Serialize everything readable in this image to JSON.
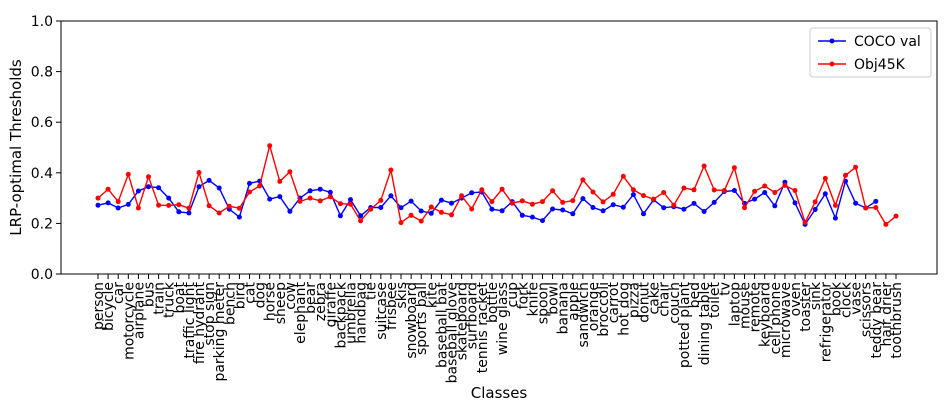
{
  "chart_data": {
    "type": "line",
    "title": "",
    "xlabel": "Classes",
    "ylabel": "LRP-optimal Thresholds",
    "ylim": [
      0.0,
      1.0
    ],
    "yticks": [
      "0.0",
      "0.2",
      "0.4",
      "0.6",
      "0.8",
      "1.0"
    ],
    "grid": false,
    "legend_position": "top-right",
    "categories": [
      "person",
      "bicycle",
      "car",
      "motorcycle",
      "airplane",
      "bus",
      "train",
      "truck",
      "boat",
      "traffic light",
      "fire hydrant",
      "stop sign",
      "parking meter",
      "bench",
      "bird",
      "cat",
      "dog",
      "horse",
      "sheep",
      "cow",
      "elephant",
      "bear",
      "zebra",
      "giraffe",
      "backpack",
      "umbrella",
      "handbag",
      "tie",
      "suitcase",
      "frisbee",
      "skis",
      "snowboard",
      "sports ball",
      "kite",
      "baseball bat",
      "baseball glove",
      "skateboard",
      "surfboard",
      "tennis racket",
      "bottle",
      "wine glass",
      "cup",
      "fork",
      "knife",
      "spoon",
      "bowl",
      "banana",
      "apple",
      "sandwich",
      "orange",
      "broccoli",
      "carrot",
      "hot dog",
      "pizza",
      "donut",
      "cake",
      "chair",
      "couch",
      "potted plant",
      "bed",
      "dining table",
      "toilet",
      "tv",
      "laptop",
      "mouse",
      "remote",
      "keyboard",
      "cell phone",
      "microwave",
      "oven",
      "toaster",
      "sink",
      "refrigerator",
      "book",
      "clock",
      "vase",
      "scissors",
      "teddy bear",
      "hair drier",
      "toothbrush"
    ],
    "series": [
      {
        "name": "COCO val",
        "color": "#0000ff",
        "values": [
          0.272,
          0.281,
          0.261,
          0.275,
          0.328,
          0.345,
          0.341,
          0.3,
          0.246,
          0.241,
          0.345,
          0.37,
          0.34,
          0.256,
          0.225,
          0.358,
          0.367,
          0.296,
          0.306,
          0.248,
          0.3,
          0.329,
          0.335,
          0.323,
          0.23,
          0.294,
          0.23,
          0.263,
          0.263,
          0.309,
          0.262,
          0.288,
          0.249,
          0.24,
          0.292,
          0.28,
          0.3,
          0.321,
          0.324,
          0.256,
          0.25,
          0.286,
          0.232,
          0.225,
          0.211,
          0.257,
          0.253,
          0.238,
          0.298,
          0.263,
          0.25,
          0.274,
          0.264,
          0.314,
          0.238,
          0.293,
          0.262,
          0.266,
          0.256,
          0.279,
          0.247,
          0.283,
          0.326,
          0.33,
          0.279,
          0.296,
          0.322,
          0.269,
          0.363,
          0.281,
          0.196,
          0.255,
          0.317,
          0.221,
          0.367,
          0.28,
          0.261,
          0.287,
          null,
          null
        ]
      },
      {
        "name": "Obj45K",
        "color": "#ff0000",
        "values": [
          0.3,
          0.335,
          0.286,
          0.394,
          0.261,
          0.384,
          0.272,
          0.271,
          0.274,
          0.26,
          0.401,
          0.27,
          0.241,
          0.268,
          0.26,
          0.324,
          0.348,
          0.507,
          0.366,
          0.404,
          0.287,
          0.3,
          0.289,
          0.305,
          0.278,
          0.276,
          0.21,
          0.256,
          0.291,
          0.411,
          0.203,
          0.232,
          0.209,
          0.265,
          0.244,
          0.234,
          0.309,
          0.257,
          0.333,
          0.286,
          0.335,
          0.28,
          0.289,
          0.276,
          0.286,
          0.329,
          0.283,
          0.29,
          0.372,
          0.324,
          0.285,
          0.315,
          0.386,
          0.333,
          0.31,
          0.296,
          0.322,
          0.272,
          0.34,
          0.333,
          0.427,
          0.332,
          0.33,
          0.42,
          0.262,
          0.327,
          0.348,
          0.322,
          0.35,
          0.33,
          0.204,
          0.285,
          0.378,
          0.271,
          0.39,
          0.422,
          0.261,
          0.263,
          0.196,
          0.229
        ]
      }
    ]
  }
}
